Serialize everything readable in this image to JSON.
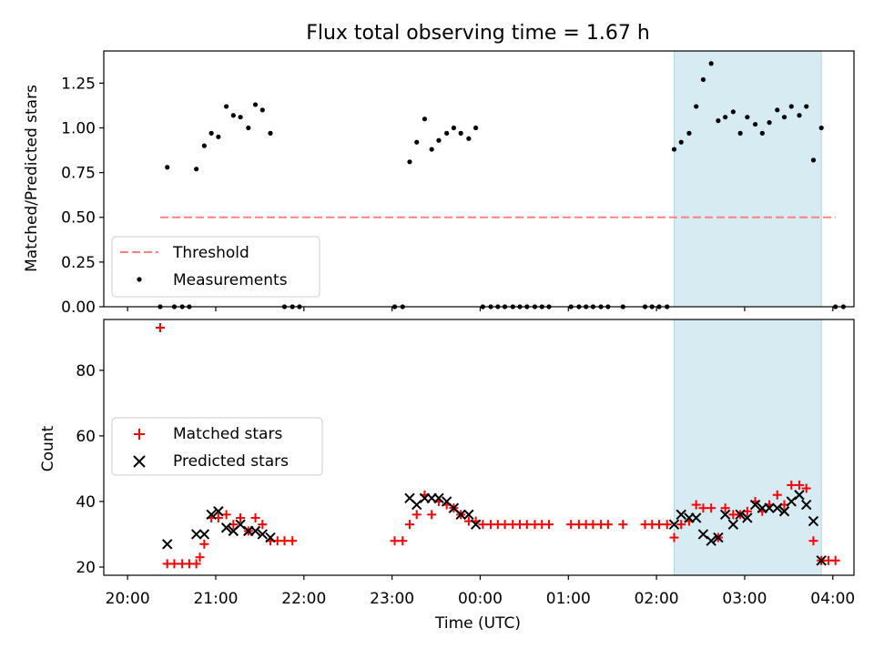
{
  "title": "Flux total observing time = 1.67 h",
  "colors": {
    "threshold": "#ff8080",
    "shade": "#add8e6",
    "matched": "#ff0000",
    "predicted": "#000000",
    "measurement": "#000000"
  },
  "chart_data": [
    {
      "type": "scatter",
      "ylabel": "Matched/Predicted stars",
      "ylim": [
        0,
        1.43
      ],
      "yticks": [
        "0.00",
        "0.25",
        "0.50",
        "0.75",
        "1.00",
        "1.25"
      ],
      "yticks_values": [
        0,
        0.25,
        0.5,
        0.75,
        1.0,
        1.25
      ],
      "xlim": [
        -0.27,
        8.24
      ],
      "shaded_span": [
        6.2,
        7.87
      ],
      "threshold": {
        "label": "Threshold",
        "value": 0.5,
        "x_range": [
          0.37,
          8.03
        ]
      },
      "legend": [
        "Threshold",
        "Measurements"
      ],
      "legend_position": "lower-left",
      "series": [
        {
          "name": "Measurements",
          "x": [
            0.37,
            0.45,
            0.53,
            0.62,
            0.7,
            0.78,
            0.87,
            0.95,
            1.03,
            1.12,
            1.2,
            1.28,
            1.37,
            1.45,
            1.53,
            1.62,
            1.78,
            1.87,
            1.95,
            3.03,
            3.12,
            3.2,
            3.28,
            3.37,
            3.45,
            3.53,
            3.62,
            3.7,
            3.78,
            3.87,
            3.95,
            4.03,
            4.12,
            4.2,
            4.28,
            4.37,
            4.45,
            4.53,
            4.62,
            4.7,
            4.78,
            5.03,
            5.12,
            5.2,
            5.28,
            5.37,
            5.45,
            5.62,
            5.87,
            5.95,
            6.03,
            6.12,
            6.2,
            6.28,
            6.37,
            6.45,
            6.53,
            6.62,
            6.7,
            6.78,
            6.87,
            6.95,
            7.03,
            7.12,
            7.2,
            7.28,
            7.37,
            7.45,
            7.53,
            7.62,
            7.7,
            7.78,
            7.87,
            8.03,
            8.12
          ],
          "y": [
            0,
            0.78,
            0,
            0,
            0,
            0.77,
            0.9,
            0.97,
            0.95,
            1.12,
            1.07,
            1.06,
            1.0,
            1.13,
            1.1,
            0.97,
            0,
            0,
            0,
            0,
            0,
            0.81,
            0.92,
            1.05,
            0.88,
            0.93,
            0.97,
            1.0,
            0.97,
            0.94,
            1.0,
            0,
            0,
            0,
            0,
            0,
            0,
            0,
            0,
            0,
            0,
            0,
            0,
            0,
            0,
            0,
            0,
            0,
            0,
            0,
            0,
            0,
            0.88,
            0.92,
            0.97,
            1.12,
            1.27,
            1.36,
            1.04,
            1.06,
            1.09,
            0.97,
            1.06,
            1.02,
            0.97,
            1.03,
            1.1,
            1.06,
            1.12,
            1.07,
            1.12,
            0.82,
            1.0,
            0,
            0
          ]
        }
      ]
    },
    {
      "type": "scatter",
      "ylabel": "Count",
      "xlabel": "Time (UTC)",
      "ylim": [
        17.5,
        95.5
      ],
      "yticks": [
        "20",
        "40",
        "60",
        "80"
      ],
      "yticks_values": [
        20,
        40,
        60,
        80
      ],
      "xlim": [
        -0.27,
        8.24
      ],
      "xticks": [
        "20:00",
        "21:00",
        "22:00",
        "23:00",
        "00:00",
        "01:00",
        "02:00",
        "03:00",
        "04:00"
      ],
      "xticks_values": [
        0,
        1,
        2,
        3,
        4,
        5,
        6,
        7,
        8
      ],
      "shaded_span": [
        6.2,
        7.87
      ],
      "legend": [
        "Matched stars",
        "Predicted stars"
      ],
      "legend_position": "center-left",
      "series": [
        {
          "name": "Matched stars",
          "marker": "+",
          "x": [
            0.37,
            0.45,
            0.53,
            0.62,
            0.7,
            0.78,
            0.82,
            0.87,
            0.95,
            1.03,
            1.12,
            1.2,
            1.28,
            1.37,
            1.45,
            1.53,
            1.62,
            1.7,
            1.78,
            1.87,
            3.03,
            3.12,
            3.2,
            3.28,
            3.37,
            3.45,
            3.53,
            3.62,
            3.7,
            3.78,
            3.87,
            3.95,
            4.03,
            4.12,
            4.2,
            4.28,
            4.37,
            4.45,
            4.53,
            4.62,
            4.7,
            4.78,
            5.03,
            5.12,
            5.2,
            5.28,
            5.37,
            5.45,
            5.62,
            5.87,
            5.95,
            6.03,
            6.12,
            6.2,
            6.28,
            6.37,
            6.45,
            6.53,
            6.62,
            6.7,
            6.78,
            6.87,
            6.95,
            7.03,
            7.12,
            7.2,
            7.28,
            7.37,
            7.45,
            7.53,
            7.62,
            7.7,
            7.78,
            7.87,
            7.95,
            8.03
          ],
          "y": [
            93,
            21,
            21,
            21,
            21,
            21,
            23,
            27,
            35,
            35,
            36,
            33,
            35,
            31,
            35,
            33,
            28,
            28,
            28,
            28,
            28,
            28,
            33,
            36,
            42,
            36,
            40,
            39,
            38,
            36,
            34,
            34,
            33,
            33,
            33,
            33,
            33,
            33,
            33,
            33,
            33,
            33,
            33,
            33,
            33,
            33,
            33,
            33,
            33,
            33,
            33,
            33,
            33,
            29,
            33,
            34,
            39,
            38,
            38,
            29,
            38,
            36,
            36,
            37,
            40,
            37,
            39,
            42,
            39,
            45,
            45,
            44,
            28,
            22,
            22,
            22
          ]
        },
        {
          "name": "Predicted stars",
          "marker": "x",
          "x": [
            0.45,
            0.78,
            0.87,
            0.95,
            1.03,
            1.12,
            1.2,
            1.28,
            1.37,
            1.45,
            1.53,
            1.62,
            3.2,
            3.28,
            3.37,
            3.45,
            3.53,
            3.62,
            3.7,
            3.78,
            3.87,
            3.95,
            6.2,
            6.28,
            6.37,
            6.45,
            6.53,
            6.62,
            6.7,
            6.78,
            6.87,
            6.95,
            7.03,
            7.12,
            7.2,
            7.28,
            7.37,
            7.45,
            7.53,
            7.62,
            7.7,
            7.78,
            7.87
          ],
          "y": [
            27,
            30,
            30,
            36,
            37,
            32,
            31,
            33,
            31,
            31,
            30,
            29,
            41,
            39,
            41,
            41,
            41,
            40,
            38,
            36,
            36,
            33,
            33,
            36,
            35,
            35,
            30,
            28,
            29,
            36,
            33,
            36,
            35,
            39,
            38,
            38,
            38,
            37,
            40,
            42,
            39,
            34,
            22
          ]
        }
      ]
    }
  ]
}
